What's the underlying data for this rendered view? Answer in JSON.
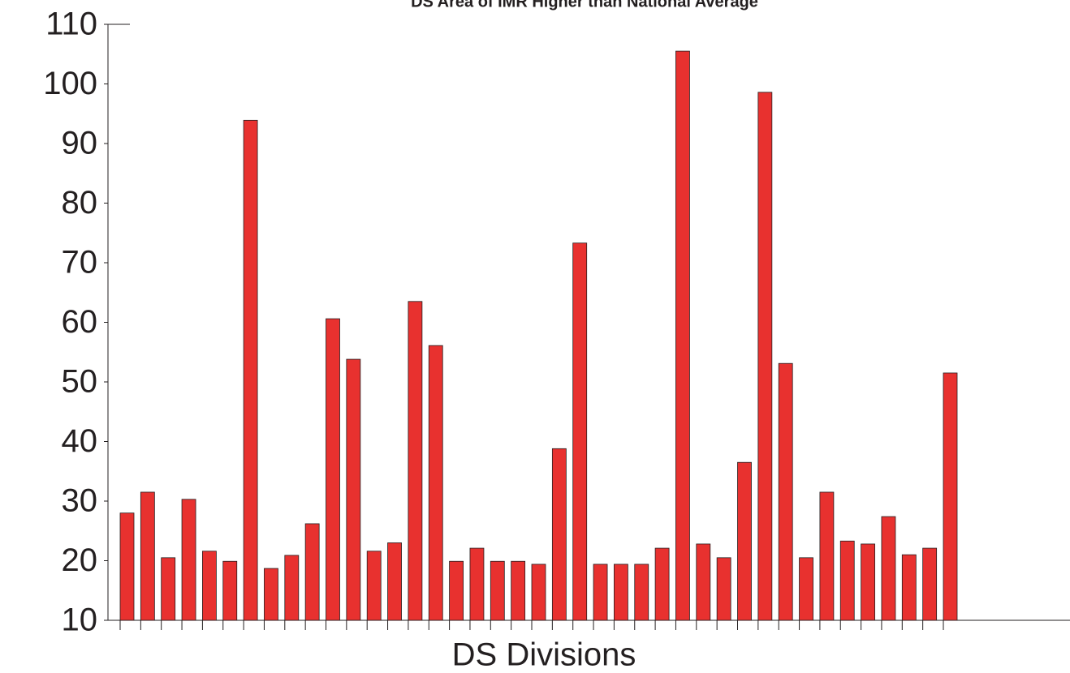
{
  "chart_data": {
    "type": "bar",
    "title": "DS Area of IMR Higher than National Average",
    "x_label": "DS Divisions",
    "categories": [
      null,
      null,
      null,
      null,
      null,
      null,
      null,
      null,
      null,
      null,
      null,
      null,
      null,
      null,
      null,
      null,
      null,
      null,
      null,
      null,
      null,
      null,
      null,
      null,
      null,
      null,
      null,
      null,
      null,
      null,
      null,
      null,
      null,
      null,
      null,
      null,
      null,
      null,
      null,
      null,
      null
    ],
    "values": [
      28.0,
      31.5,
      20.5,
      30.3,
      21.6,
      19.9,
      93.9,
      18.7,
      20.9,
      26.2,
      60.6,
      53.8,
      21.6,
      23.0,
      63.5,
      56.1,
      19.9,
      22.1,
      19.9,
      19.9,
      19.4,
      38.8,
      73.3,
      19.4,
      19.4,
      19.4,
      22.1,
      105.5,
      22.8,
      20.5,
      36.5,
      98.6,
      53.1,
      20.5,
      31.5,
      23.3,
      22.8,
      27.4,
      21.0,
      22.1,
      51.5
    ],
    "color": "#e8312f",
    "ylim": [
      10,
      110
    ],
    "yticks": [
      10,
      20,
      30,
      40,
      50,
      60,
      70,
      80,
      90,
      100,
      110
    ]
  }
}
